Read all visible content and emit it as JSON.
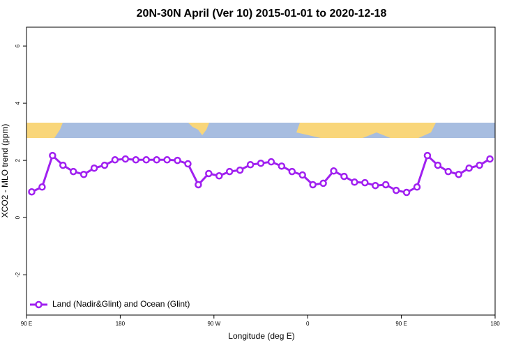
{
  "chart_data": {
    "type": "line",
    "title": "20N-30N April (Ver 10)   2015-01-01 to 2020-12-18",
    "x_label": "Longitude (deg E)",
    "y_label": "XCO2 - MLO trend (ppm)",
    "x": [
      95,
      105,
      115,
      125,
      135,
      145,
      155,
      165,
      175,
      185,
      195,
      205,
      215,
      225,
      235,
      245,
      255,
      265,
      275,
      285,
      295,
      305,
      315,
      325,
      335,
      345,
      355,
      365,
      375,
      385,
      395,
      405,
      415,
      425,
      435,
      445,
      455,
      465,
      475,
      485,
      495,
      505,
      515,
      525,
      535
    ],
    "series": [
      {
        "name": "Land (Nadir&Glint) and Ocean (Glint)",
        "color": "#a020f0",
        "values": [
          0.9,
          1.07,
          2.17,
          1.83,
          1.61,
          1.51,
          1.73,
          1.83,
          2.02,
          2.05,
          2.02,
          2.02,
          2.02,
          2.02,
          2.0,
          1.88,
          1.15,
          1.54,
          1.46,
          1.61,
          1.66,
          1.85,
          1.9,
          1.95,
          1.8,
          1.61,
          1.49,
          1.15,
          1.2,
          1.63,
          1.44,
          1.24,
          1.22,
          1.12,
          1.15,
          0.95,
          0.88,
          1.07,
          2.17,
          1.83,
          1.61,
          1.51,
          1.73,
          1.83,
          2.05
        ]
      }
    ],
    "xlim": [
      90,
      540
    ],
    "xticks": [
      {
        "value": 90,
        "label": "90 E"
      },
      180,
      {
        "value": 270,
        "label": "90 W"
      },
      {
        "value": 360,
        "label": "0"
      },
      {
        "value": 450,
        "label": "90 E"
      },
      {
        "value": 540,
        "label": "180"
      }
    ],
    "ylim": [
      -3.41,
      6.66
    ],
    "yticks": [
      -2,
      0,
      2,
      4,
      6
    ],
    "legend": "bottomleft"
  }
}
